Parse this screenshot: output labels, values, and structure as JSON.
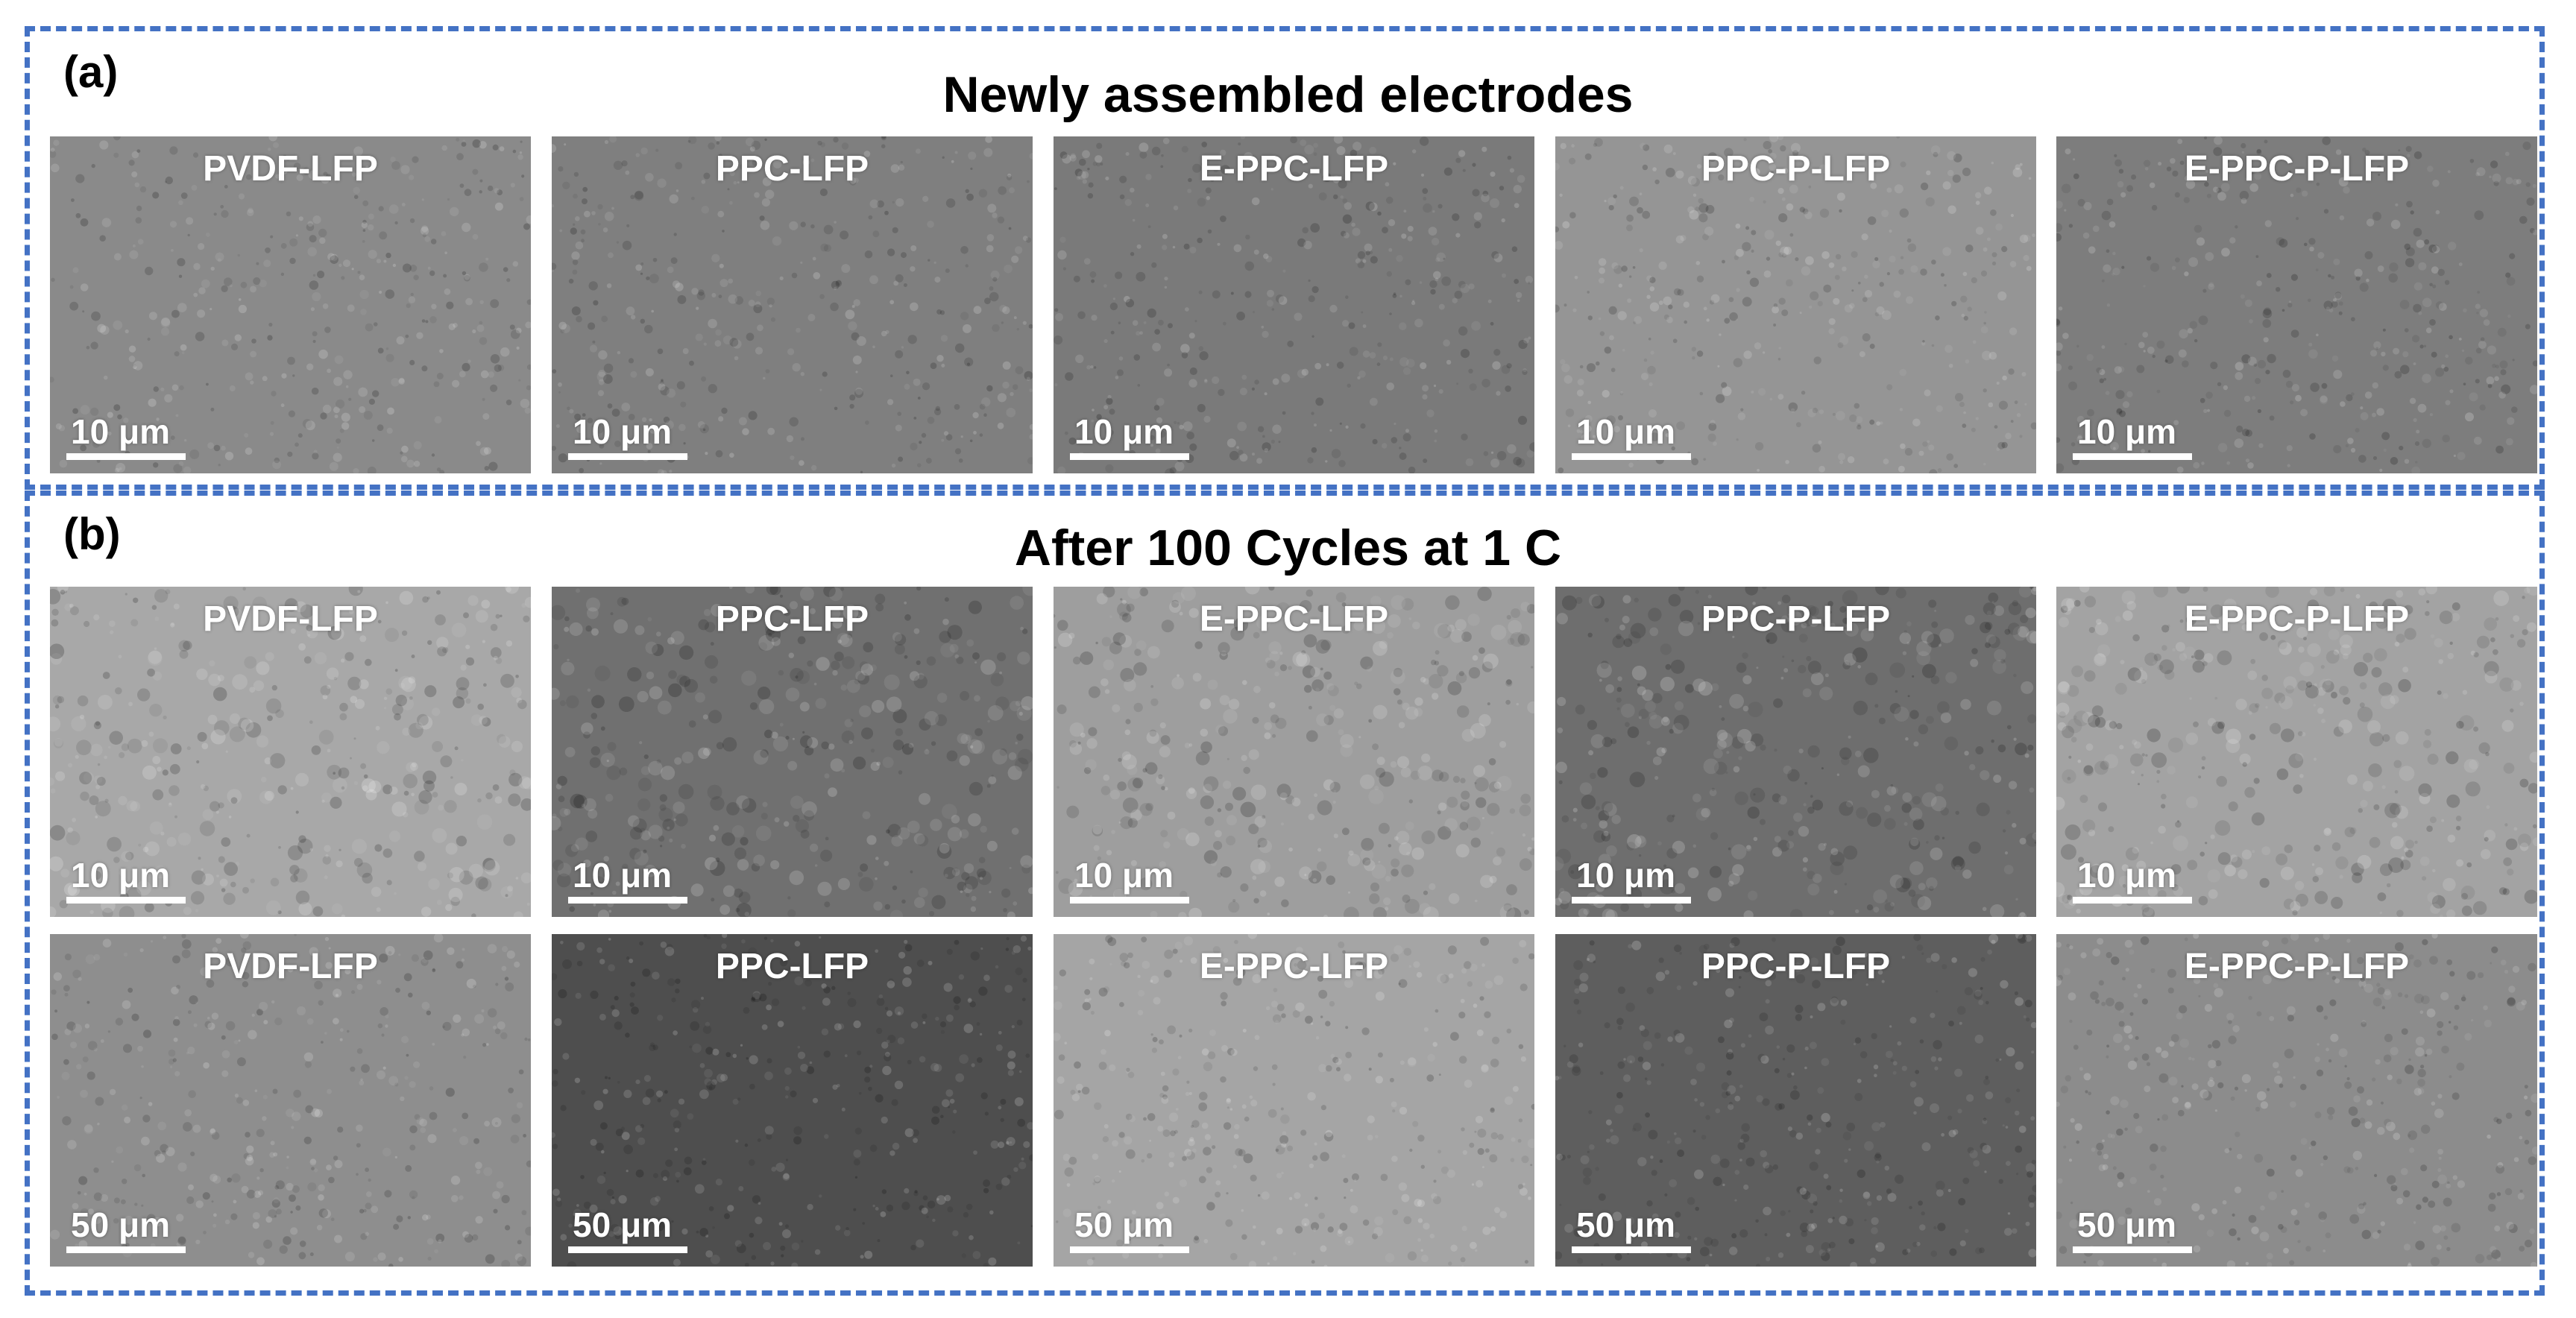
{
  "panel_a": {
    "letter": "(a)",
    "title": "Newly assembled electrodes",
    "images": [
      {
        "label": "PVDF-LFP",
        "scale": "10 μm",
        "tone": "#8a8a8a"
      },
      {
        "label": "PPC-LFP",
        "scale": "10 μm",
        "tone": "#7f7f7f"
      },
      {
        "label": "E-PPC-LFP",
        "scale": "10 μm",
        "tone": "#7a7a7a"
      },
      {
        "label": "PPC-P-LFP",
        "scale": "10 μm",
        "tone": "#959595"
      },
      {
        "label": "E-PPC-P-LFP",
        "scale": "10 μm",
        "tone": "#7d7d7d"
      }
    ]
  },
  "panel_b": {
    "letter": "(b)",
    "title": "After 100 Cycles at 1 C",
    "row1": [
      {
        "label": "PVDF-LFP",
        "scale": "10 μm",
        "tone": "#a8a8a8"
      },
      {
        "label": "PPC-LFP",
        "scale": "10 μm",
        "tone": "#707070"
      },
      {
        "label": "E-PPC-LFP",
        "scale": "10 μm",
        "tone": "#9e9e9e"
      },
      {
        "label": "PPC-P-LFP",
        "scale": "10 μm",
        "tone": "#6e6e6e"
      },
      {
        "label": "E-PPC-P-LFP",
        "scale": "10 μm",
        "tone": "#a3a3a3"
      }
    ],
    "row2": [
      {
        "label": "PVDF-LFP",
        "scale": "50 μm",
        "tone": "#8e8e8e"
      },
      {
        "label": "PPC-LFP",
        "scale": "50 μm",
        "tone": "#4e4e4e"
      },
      {
        "label": "E-PPC-LFP",
        "scale": "50 μm",
        "tone": "#a5a5a5"
      },
      {
        "label": "PPC-P-LFP",
        "scale": "50 μm",
        "tone": "#5e5e5e"
      },
      {
        "label": "E-PPC-P-LFP",
        "scale": "50 μm",
        "tone": "#8c8c8c"
      }
    ]
  }
}
